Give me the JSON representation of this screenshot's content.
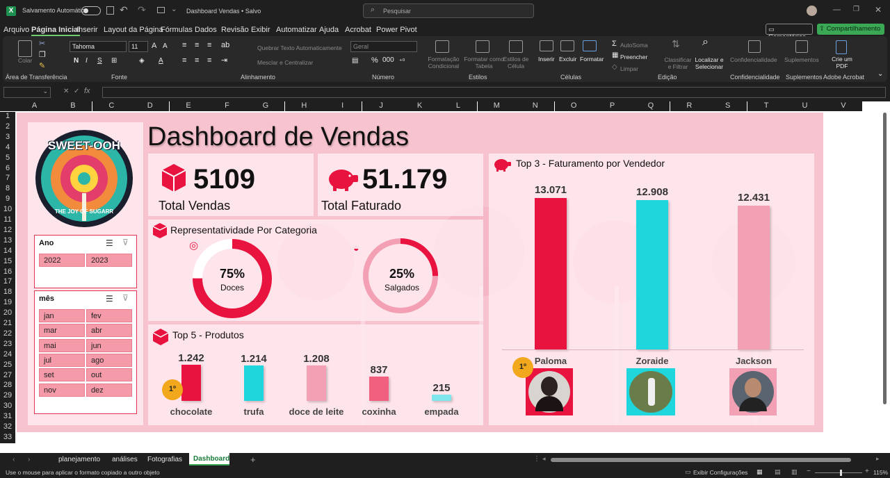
{
  "titlebar": {
    "autosave_label": "Salvamento Automático",
    "autosave_state": "off",
    "doc_title": "Dashboard Vendas • Salvo",
    "search_placeholder": "Pesquisar"
  },
  "menu": {
    "items": [
      "Arquivo",
      "Página Inicial",
      "Inserir",
      "Layout da Página",
      "Fórmulas",
      "Dados",
      "Revisão",
      "Exibir",
      "Automatizar",
      "Ajuda",
      "Acrobat",
      "Power Pivot"
    ],
    "active": "Página Inicial",
    "comments_label": "Comentários",
    "share_label": "Compartilhamento"
  },
  "ribbon": {
    "clipboard": {
      "paste": "Colar",
      "group": "Área de Transferência"
    },
    "font": {
      "name": "Tahoma",
      "size": "11",
      "bold": "N",
      "italic": "I",
      "underline": "S",
      "group": "Fonte"
    },
    "alignment": {
      "wrap": "Quebrar Texto Automaticamente",
      "merge": "Mesclar e Centralizar",
      "group": "Alinhamento"
    },
    "number": {
      "format": "Geral",
      "group": "Número"
    },
    "styles": {
      "cond": "Formatação Condicional",
      "table": "Formatar como Tabela",
      "cell": "Estilos de Célula",
      "group": "Estilos"
    },
    "cells": {
      "insert": "Inserir",
      "delete": "Excluir",
      "format": "Formatar",
      "group": "Células"
    },
    "editing": {
      "autosum": "AutoSoma",
      "fill": "Preencher",
      "clear": "Limpar",
      "sort": "Classificar e Filtrar",
      "find": "Localizar e Selecionar",
      "group": "Edição"
    },
    "sensitivity": {
      "label": "Confidencialidade",
      "group": "Confidencialidade"
    },
    "addins": {
      "label": "Suplementos",
      "group": "Suplementos"
    },
    "acrobat": {
      "label": "Crie um PDF",
      "group": "Adobe Acrobat"
    }
  },
  "columns": [
    "A",
    "B",
    "C",
    "D",
    "E",
    "F",
    "G",
    "H",
    "I",
    "J",
    "K",
    "L",
    "M",
    "N",
    "O",
    "P",
    "Q",
    "R",
    "S",
    "T",
    "U",
    "V"
  ],
  "rows": [
    "1",
    "2",
    "3",
    "4",
    "5",
    "6",
    "7",
    "8",
    "9",
    "10",
    "11",
    "12",
    "13",
    "14",
    "15",
    "16",
    "17",
    "18",
    "19",
    "20",
    "21",
    "22",
    "23",
    "24",
    "25",
    "27",
    "28",
    "29",
    "30",
    "31",
    "32",
    "33"
  ],
  "dashboard": {
    "title": "Dashboard de Vendas",
    "logo": {
      "top_text": "SWEET-OOH",
      "bottom_text": "THE JOY OF SUGARR"
    },
    "kpi_sales": {
      "value": "5109",
      "label": "Total Vendas"
    },
    "kpi_revenue": {
      "value": "51.179",
      "label": "Total Faturado"
    },
    "category_title": "Representatividade Por Categoria",
    "categories": [
      {
        "pct_label": "75%",
        "name": "Doces",
        "value": 0.75
      },
      {
        "pct_label": "25%",
        "name": "Salgados",
        "value": 0.25
      }
    ],
    "products_title": "Top 5 - Produtos",
    "sellers_title": "Top 3 - Faturamento por Vendedor",
    "first_badge": "1º",
    "year_slicer": {
      "title": "Ano",
      "items": [
        "2022",
        "2023"
      ]
    },
    "month_slicer": {
      "title": "mês",
      "items": [
        "jan",
        "fev",
        "mar",
        "abr",
        "mai",
        "jun",
        "jul",
        "ago",
        "set",
        "out",
        "nov",
        "dez"
      ]
    }
  },
  "chart_data": [
    {
      "type": "bar",
      "title": "Top 5 - Produtos",
      "categories": [
        "chocolate",
        "trufa",
        "doce de leite",
        "coxinha",
        "empada"
      ],
      "values": [
        1242,
        1214,
        1208,
        837,
        215
      ],
      "value_labels": [
        "1.242",
        "1.214",
        "1.208",
        "837",
        "215"
      ],
      "colors": [
        "#e8133e",
        "#1fd6dc",
        "#f4a0b4",
        "#f2607f",
        "#7fe6ee"
      ]
    },
    {
      "type": "bar",
      "title": "Top 3 - Faturamento por Vendedor",
      "categories": [
        "Paloma",
        "Zoraide",
        "Jackson"
      ],
      "values": [
        13071,
        12908,
        12431
      ],
      "value_labels": [
        "13.071",
        "12.908",
        "12.431"
      ],
      "colors": [
        "#e8133e",
        "#1fd6dc",
        "#f4a0b4"
      ]
    }
  ],
  "sheet_tabs": {
    "items": [
      "planejamento",
      "análises",
      "Fotografias",
      "Dashboard"
    ],
    "active": "Dashboard"
  },
  "status": {
    "message": "Use o mouse para aplicar o formato copiado a outro objeto",
    "display_settings": "Exibir Configurações",
    "zoom": "115%"
  }
}
